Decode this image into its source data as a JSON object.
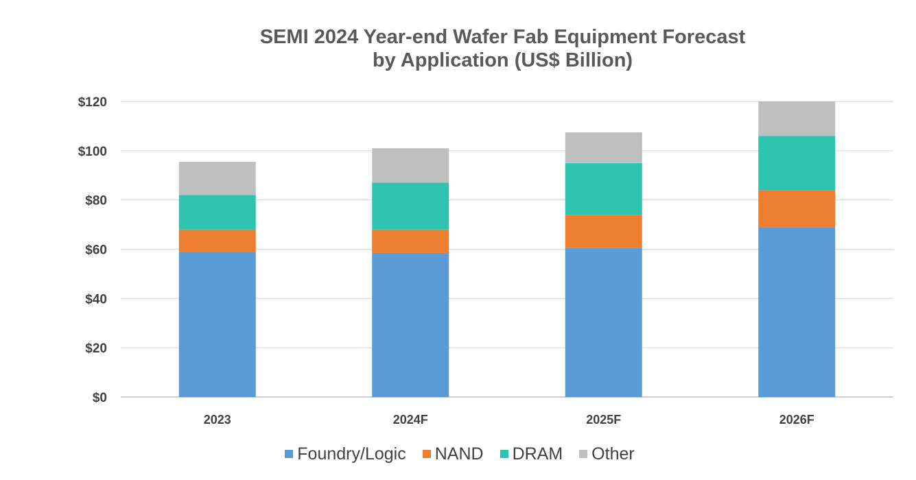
{
  "chart_data": {
    "type": "bar",
    "stacked": true,
    "title": "SEMI 2024 Year-end Wafer Fab Equipment Forecast",
    "subtitle": "by Application (US$ Billion)",
    "xlabel": "",
    "ylabel": "",
    "categories": [
      "2023",
      "2024F",
      "2025F",
      "2026F"
    ],
    "ylim": [
      0,
      120
    ],
    "yticks": [
      0,
      20,
      40,
      60,
      80,
      100,
      120
    ],
    "ytick_labels": [
      "$0",
      "$20",
      "$40",
      "$60",
      "$80",
      "$100",
      "$120"
    ],
    "grid": true,
    "legend_position": "bottom",
    "series": [
      {
        "name": "Foundry/Logic",
        "color": "#5b9bd5",
        "values": [
          59,
          58.5,
          60.5,
          69
        ]
      },
      {
        "name": "NAND",
        "color": "#ed7d31",
        "values": [
          9,
          9.5,
          13.5,
          15
        ]
      },
      {
        "name": "DRAM",
        "color": "#2ec4b0",
        "values": [
          14,
          19,
          21,
          22
        ]
      },
      {
        "name": "Other",
        "color": "#bfbfbf",
        "values": [
          13.5,
          14,
          12.5,
          14
        ]
      }
    ]
  }
}
